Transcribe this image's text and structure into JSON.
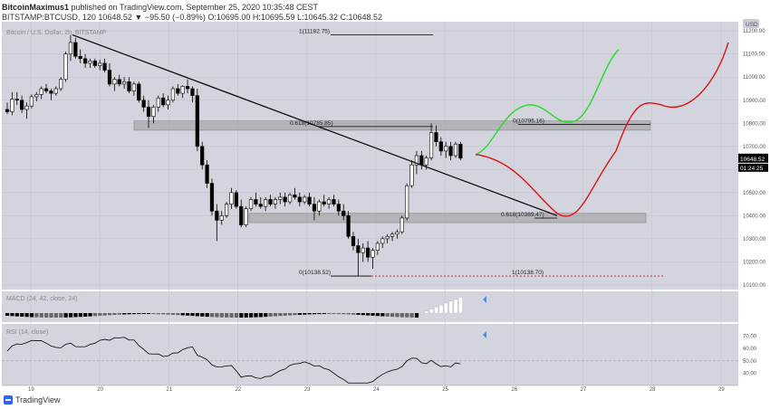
{
  "header": {
    "line1_author": "BitcoinMaximus1",
    "line1_rest": "published on TradingView.com, September 25, 2020 10:35:48 CEST",
    "line2_symbol": "BITSTAMP:BTCUSD, 120",
    "line2_values": "10648.52 ▼ −95.50 (−0.89%) O:10695.00 H:10695.59 L:10645.32 C:10648.52"
  },
  "footer": {
    "brand": "TradingView"
  },
  "colors": {
    "up_candle": "#ffffff",
    "down_candle": "#000000",
    "green": "#22dd22",
    "red": "#dd1111",
    "zone": "#9a9a9a",
    "background": "#d3d4de",
    "macd_up": "#ffffff",
    "accent": "#4a90e2"
  },
  "chart_data": {
    "type": "candlestick",
    "title": "Bitcoin / U.S. Dollar, 2h, BITSTAMP",
    "y_scale": "linear",
    "ylim": [
      10080,
      11240
    ],
    "y_ticks": [
      "11200.00",
      "11100.00",
      "11000.00",
      "10900.00",
      "10800.00",
      "10700.00",
      "10600.00",
      "10500.00",
      "10400.00",
      "10300.00",
      "10200.00",
      "10100.00"
    ],
    "x_ticks": [
      "19",
      "20",
      "21",
      "22",
      "23",
      "24",
      "25",
      "26",
      "27",
      "28",
      "29"
    ],
    "price_label": "10648.52",
    "countdown_label": "01:24:25",
    "candles": [
      {
        "o": 10860,
        "h": 10890,
        "l": 10840,
        "c": 10850
      },
      {
        "o": 10850,
        "h": 10935,
        "l": 10835,
        "c": 10905
      },
      {
        "o": 10905,
        "h": 10935,
        "l": 10880,
        "c": 10900
      },
      {
        "o": 10900,
        "h": 10920,
        "l": 10845,
        "c": 10860
      },
      {
        "o": 10860,
        "h": 10890,
        "l": 10820,
        "c": 10875
      },
      {
        "o": 10875,
        "h": 10925,
        "l": 10865,
        "c": 10915
      },
      {
        "o": 10915,
        "h": 10935,
        "l": 10895,
        "c": 10925
      },
      {
        "o": 10925,
        "h": 10960,
        "l": 10905,
        "c": 10950
      },
      {
        "o": 10950,
        "h": 10970,
        "l": 10930,
        "c": 10940
      },
      {
        "o": 10940,
        "h": 10950,
        "l": 10900,
        "c": 10930
      },
      {
        "o": 10930,
        "h": 10960,
        "l": 10920,
        "c": 10950
      },
      {
        "o": 10950,
        "h": 11000,
        "l": 10940,
        "c": 10990
      },
      {
        "o": 10990,
        "h": 11110,
        "l": 10980,
        "c": 11100
      },
      {
        "o": 11100,
        "h": 11182,
        "l": 11070,
        "c": 11150
      },
      {
        "o": 11150,
        "h": 11170,
        "l": 11080,
        "c": 11090
      },
      {
        "o": 11090,
        "h": 11120,
        "l": 11060,
        "c": 11080
      },
      {
        "o": 11080,
        "h": 11100,
        "l": 11040,
        "c": 11060
      },
      {
        "o": 11060,
        "h": 11080,
        "l": 11040,
        "c": 11070
      },
      {
        "o": 11070,
        "h": 11080,
        "l": 11040,
        "c": 11050
      },
      {
        "o": 11050,
        "h": 11075,
        "l": 11030,
        "c": 11060
      },
      {
        "o": 11060,
        "h": 11080,
        "l": 11020,
        "c": 11030
      },
      {
        "o": 11030,
        "h": 11060,
        "l": 10960,
        "c": 10970
      },
      {
        "o": 10970,
        "h": 11000,
        "l": 10940,
        "c": 10990
      },
      {
        "o": 10990,
        "h": 11010,
        "l": 10960,
        "c": 10970
      },
      {
        "o": 10970,
        "h": 11000,
        "l": 10950,
        "c": 10980
      },
      {
        "o": 10980,
        "h": 11000,
        "l": 10930,
        "c": 10940
      },
      {
        "o": 10940,
        "h": 10980,
        "l": 10920,
        "c": 10970
      },
      {
        "o": 10970,
        "h": 10980,
        "l": 10890,
        "c": 10900
      },
      {
        "o": 10900,
        "h": 10920,
        "l": 10850,
        "c": 10870
      },
      {
        "o": 10870,
        "h": 10900,
        "l": 10780,
        "c": 10830
      },
      {
        "o": 10830,
        "h": 10880,
        "l": 10800,
        "c": 10870
      },
      {
        "o": 10870,
        "h": 10920,
        "l": 10850,
        "c": 10910
      },
      {
        "o": 10910,
        "h": 10930,
        "l": 10870,
        "c": 10880
      },
      {
        "o": 10880,
        "h": 10920,
        "l": 10860,
        "c": 10900
      },
      {
        "o": 10900,
        "h": 10960,
        "l": 10890,
        "c": 10950
      },
      {
        "o": 10950,
        "h": 10970,
        "l": 10920,
        "c": 10930
      },
      {
        "o": 10930,
        "h": 10965,
        "l": 10910,
        "c": 10960
      },
      {
        "o": 10960,
        "h": 10990,
        "l": 10930,
        "c": 10950
      },
      {
        "o": 10950,
        "h": 10960,
        "l": 10890,
        "c": 10920
      },
      {
        "o": 10920,
        "h": 10950,
        "l": 10680,
        "c": 10700
      },
      {
        "o": 10700,
        "h": 10720,
        "l": 10600,
        "c": 10620
      },
      {
        "o": 10620,
        "h": 10640,
        "l": 10520,
        "c": 10540
      },
      {
        "o": 10540,
        "h": 10560,
        "l": 10400,
        "c": 10420
      },
      {
        "o": 10420,
        "h": 10450,
        "l": 10290,
        "c": 10380
      },
      {
        "o": 10380,
        "h": 10420,
        "l": 10360,
        "c": 10400
      },
      {
        "o": 10400,
        "h": 10460,
        "l": 10390,
        "c": 10450
      },
      {
        "o": 10450,
        "h": 10520,
        "l": 10430,
        "c": 10500
      },
      {
        "o": 10500,
        "h": 10510,
        "l": 10430,
        "c": 10440
      },
      {
        "o": 10440,
        "h": 10470,
        "l": 10350,
        "c": 10360
      },
      {
        "o": 10360,
        "h": 10440,
        "l": 10350,
        "c": 10430
      },
      {
        "o": 10430,
        "h": 10480,
        "l": 10420,
        "c": 10470
      },
      {
        "o": 10470,
        "h": 10500,
        "l": 10440,
        "c": 10450
      },
      {
        "o": 10450,
        "h": 10480,
        "l": 10430,
        "c": 10440
      },
      {
        "o": 10440,
        "h": 10480,
        "l": 10420,
        "c": 10470
      },
      {
        "o": 10470,
        "h": 10490,
        "l": 10440,
        "c": 10450
      },
      {
        "o": 10450,
        "h": 10480,
        "l": 10430,
        "c": 10470
      },
      {
        "o": 10470,
        "h": 10500,
        "l": 10450,
        "c": 10480
      },
      {
        "o": 10480,
        "h": 10500,
        "l": 10440,
        "c": 10460
      },
      {
        "o": 10460,
        "h": 10500,
        "l": 10450,
        "c": 10490
      },
      {
        "o": 10490,
        "h": 10520,
        "l": 10470,
        "c": 10480
      },
      {
        "o": 10480,
        "h": 10500,
        "l": 10440,
        "c": 10460
      },
      {
        "o": 10460,
        "h": 10490,
        "l": 10450,
        "c": 10480
      },
      {
        "o": 10480,
        "h": 10500,
        "l": 10440,
        "c": 10450
      },
      {
        "o": 10450,
        "h": 10480,
        "l": 10380,
        "c": 10420
      },
      {
        "o": 10420,
        "h": 10470,
        "l": 10400,
        "c": 10460
      },
      {
        "o": 10460,
        "h": 10490,
        "l": 10440,
        "c": 10450
      },
      {
        "o": 10450,
        "h": 10480,
        "l": 10430,
        "c": 10470
      },
      {
        "o": 10470,
        "h": 10490,
        "l": 10440,
        "c": 10450
      },
      {
        "o": 10450,
        "h": 10470,
        "l": 10400,
        "c": 10420
      },
      {
        "o": 10420,
        "h": 10450,
        "l": 10380,
        "c": 10400
      },
      {
        "o": 10400,
        "h": 10420,
        "l": 10300,
        "c": 10310
      },
      {
        "o": 10310,
        "h": 10330,
        "l": 10250,
        "c": 10270
      },
      {
        "o": 10270,
        "h": 10300,
        "l": 10140,
        "c": 10240
      },
      {
        "o": 10240,
        "h": 10280,
        "l": 10200,
        "c": 10260
      },
      {
        "o": 10260,
        "h": 10290,
        "l": 10200,
        "c": 10220
      },
      {
        "o": 10220,
        "h": 10260,
        "l": 10170,
        "c": 10250
      },
      {
        "o": 10250,
        "h": 10290,
        "l": 10230,
        "c": 10280
      },
      {
        "o": 10280,
        "h": 10310,
        "l": 10260,
        "c": 10300
      },
      {
        "o": 10300,
        "h": 10320,
        "l": 10280,
        "c": 10310
      },
      {
        "o": 10310,
        "h": 10330,
        "l": 10290,
        "c": 10320
      },
      {
        "o": 10320,
        "h": 10340,
        "l": 10300,
        "c": 10330
      },
      {
        "o": 10330,
        "h": 10400,
        "l": 10320,
        "c": 10390
      },
      {
        "o": 10390,
        "h": 10540,
        "l": 10380,
        "c": 10530
      },
      {
        "o": 10530,
        "h": 10640,
        "l": 10520,
        "c": 10620
      },
      {
        "o": 10620,
        "h": 10680,
        "l": 10580,
        "c": 10660
      },
      {
        "o": 10660,
        "h": 10680,
        "l": 10600,
        "c": 10620
      },
      {
        "o": 10620,
        "h": 10660,
        "l": 10600,
        "c": 10650
      },
      {
        "o": 10650,
        "h": 10800,
        "l": 10640,
        "c": 10760
      },
      {
        "o": 10760,
        "h": 10790,
        "l": 10700,
        "c": 10720
      },
      {
        "o": 10720,
        "h": 10740,
        "l": 10660,
        "c": 10680
      },
      {
        "o": 10680,
        "h": 10720,
        "l": 10650,
        "c": 10700
      },
      {
        "o": 10700,
        "h": 10720,
        "l": 10640,
        "c": 10660
      },
      {
        "o": 10660,
        "h": 10720,
        "l": 10650,
        "c": 10710
      },
      {
        "o": 10710,
        "h": 10720,
        "l": 10640,
        "c": 10649
      }
    ],
    "fib_labels": [
      "1(11182.75)",
      "0.618(10785.85)",
      "0(10795.16)",
      "0.618(10389.47)",
      "0(10138.52)",
      "1(10138.70)"
    ],
    "indicators": {
      "macd": {
        "label": "MACD (24, 42, close, 24)",
        "ticks": []
      },
      "rsi": {
        "label": "RSI (14, close)",
        "ticks": [
          "70.00",
          "60.00",
          "50.00",
          "40.00"
        ]
      }
    }
  }
}
